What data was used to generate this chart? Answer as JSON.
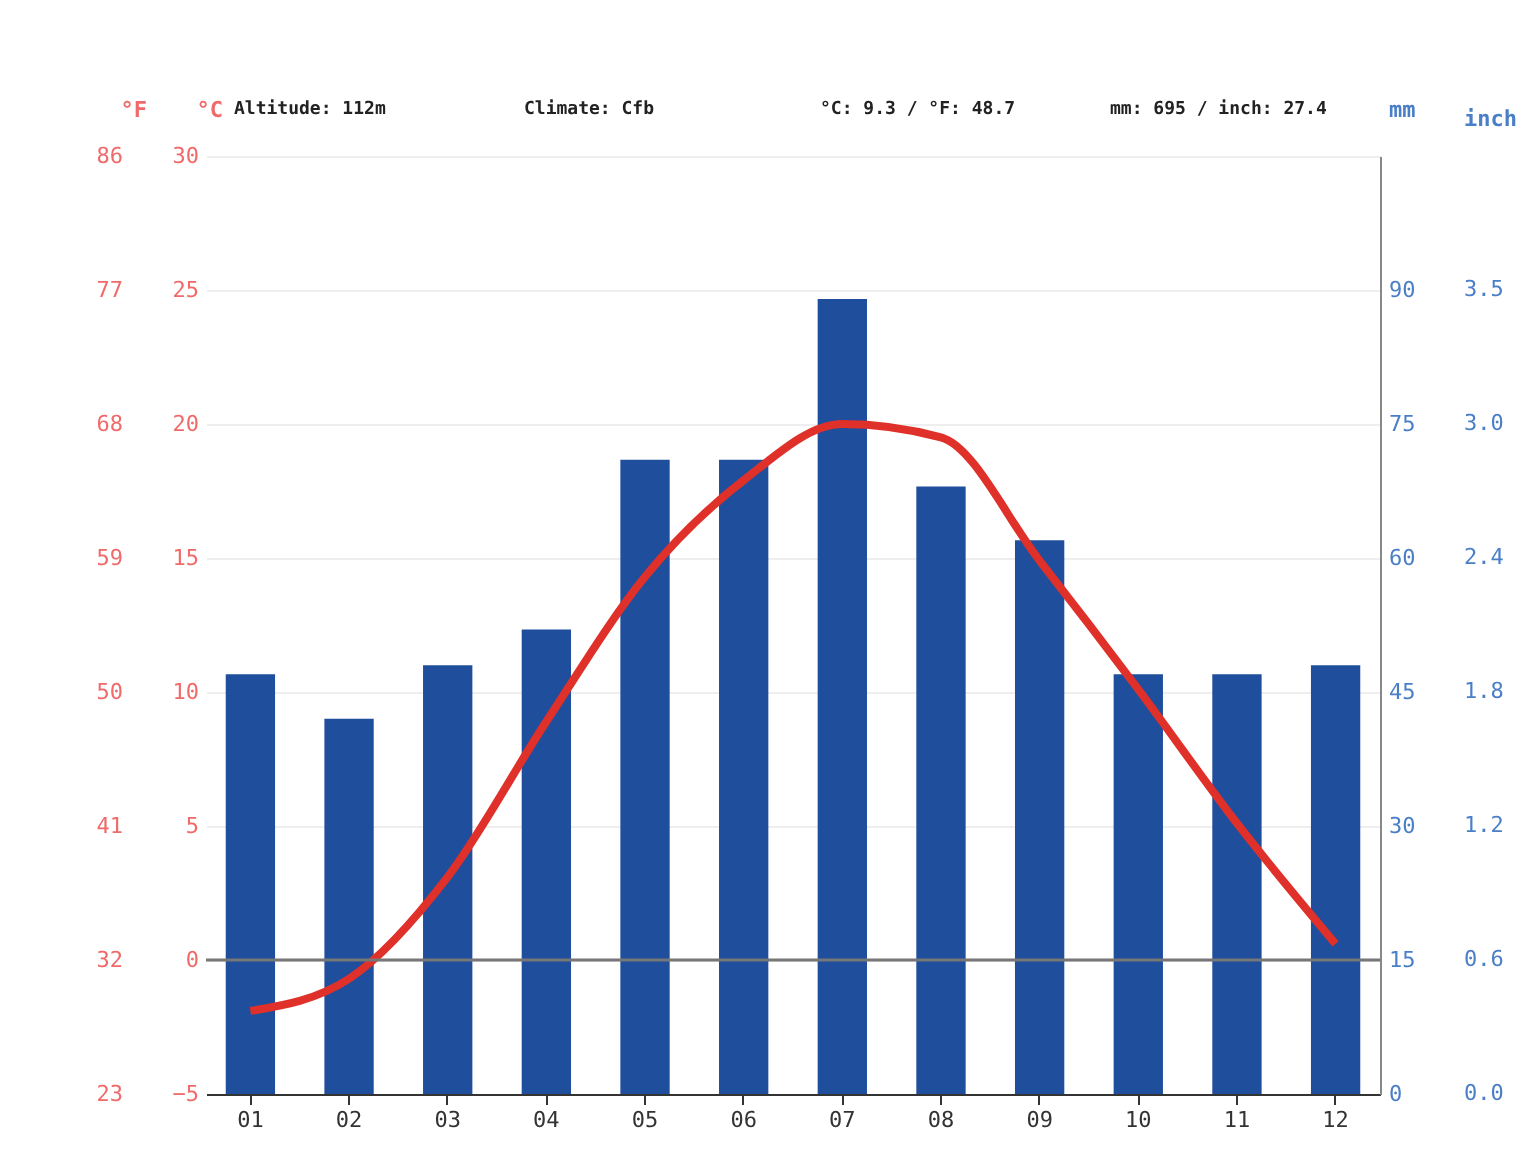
{
  "chart_data": {
    "type": "bar",
    "categories": [
      "01",
      "02",
      "03",
      "04",
      "05",
      "06",
      "07",
      "08",
      "09",
      "10",
      "11",
      "12"
    ],
    "series": [
      {
        "axis": "y2",
        "color": "#1f4e9c",
        "values": [
          47,
          42,
          48,
          52,
          71,
          71,
          89,
          68,
          62,
          47,
          47,
          48
        ]
      },
      {
        "type": "line",
        "axis": "y",
        "color": "#e0302a",
        "values": [
          -1.9,
          -0.7,
          3.1,
          8.9,
          14.3,
          17.9,
          20.0,
          19.5,
          14.9,
          10.1,
          5.1,
          0.6
        ]
      }
    ],
    "ylabel": "°C",
    "y3label": "°F",
    "y2label": "mm",
    "ylim": [
      -5,
      30
    ],
    "yticks": [
      -5,
      0,
      5,
      10,
      15,
      20,
      25,
      30
    ],
    "y3lim": [
      23,
      86
    ],
    "y3ticks": [
      23,
      32,
      41,
      50,
      59,
      68,
      77,
      86
    ],
    "y2lim": [
      0,
      105
    ],
    "y2ticks": [
      0,
      15,
      30,
      45,
      60,
      75,
      90
    ],
    "ref_lines": [
      {
        "axis": "y",
        "value": 0,
        "color": "#777777"
      }
    ],
    "annotations": [
      "Altitude: 112m",
      "Climate: Cfb",
      "°C: 9.3 / °F: 48.7",
      "mm: 695 / inch: 27.4",
      "inch",
      "0.0",
      "0.6",
      "1.2",
      "1.8",
      "2.4",
      "3.0",
      "3.5"
    ],
    "grid": "y"
  }
}
